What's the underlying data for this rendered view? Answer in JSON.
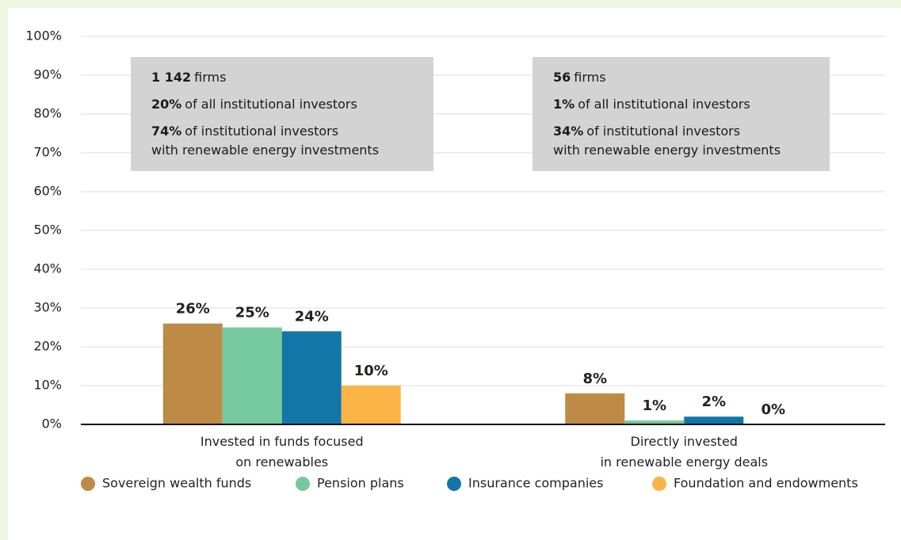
{
  "chart_data": {
    "type": "bar",
    "categories": [
      "Invested in funds focused\non renewables",
      "Directly invested\nin renewable energy deals"
    ],
    "series": [
      {
        "name": "Sovereign wealth funds",
        "color": "#bd8b45",
        "values": [
          26,
          8
        ],
        "value_labels": [
          "26%",
          "8%"
        ]
      },
      {
        "name": "Pension plans",
        "color": "#74c99e",
        "values": [
          25,
          1
        ],
        "value_labels": [
          "25%",
          "1%"
        ]
      },
      {
        "name": "Insurance companies",
        "color": "#1276a8",
        "values": [
          24,
          2
        ],
        "value_labels": [
          "24%",
          "2%"
        ]
      },
      {
        "name": "Foundation and endowments",
        "color": "#fbb445",
        "values": [
          10,
          0
        ],
        "value_labels": [
          "10%",
          "0%"
        ]
      }
    ],
    "ylim": [
      0,
      100
    ],
    "yticks": [
      {
        "value": 0,
        "label": "0%"
      },
      {
        "value": 10,
        "label": "10%"
      },
      {
        "value": 20,
        "label": "20%"
      },
      {
        "value": 30,
        "label": "30%"
      },
      {
        "value": 40,
        "label": "40%"
      },
      {
        "value": 50,
        "label": "50%"
      },
      {
        "value": 60,
        "label": "60%"
      },
      {
        "value": 70,
        "label": "70%"
      },
      {
        "value": 80,
        "label": "80%"
      },
      {
        "value": 90,
        "label": "90%"
      },
      {
        "value": 100,
        "label": "100%"
      }
    ],
    "grid": true,
    "legend": "bottom",
    "annotations": [
      {
        "lines": [
          {
            "emphasis": "1 142",
            "text": "firms"
          },
          {
            "emphasis": "20%",
            "text": "of all institutional investors"
          },
          {
            "emphasis": "74%",
            "text": "of institutional investors\nwith renewable energy investments"
          }
        ]
      },
      {
        "lines": [
          {
            "emphasis": "56",
            "text": "firms"
          },
          {
            "emphasis": "1%",
            "text": "of all institutional investors"
          },
          {
            "emphasis": "34%",
            "text": "of institutional investors\nwith renewable energy investments"
          }
        ]
      }
    ]
  }
}
